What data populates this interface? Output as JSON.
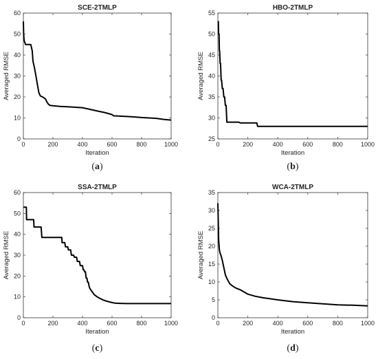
{
  "chart_data": [
    {
      "type": "line",
      "title": "SCE-2TMLP",
      "xlabel": "Iteration",
      "ylabel": "Averaged RMSE",
      "caption_letter": "a",
      "xlim": [
        0,
        1000
      ],
      "ylim": [
        0,
        60
      ],
      "xticks": [
        0,
        200,
        400,
        600,
        800,
        1000
      ],
      "yticks": [
        0,
        10,
        20,
        30,
        40,
        50,
        60
      ],
      "series": [
        {
          "x": [
            0,
            2,
            5,
            10,
            15,
            50,
            60,
            65,
            75,
            85,
            95,
            105,
            115,
            130,
            150,
            160,
            170,
            180,
            200,
            250,
            300,
            400,
            450,
            500,
            550,
            600,
            610,
            700,
            750,
            800,
            900,
            950,
            1000
          ],
          "y": [
            56,
            50,
            47,
            46,
            45,
            45,
            42,
            37,
            34,
            30,
            26,
            22,
            20.5,
            20,
            19,
            17.5,
            16.5,
            16,
            15.8,
            15.5,
            15.3,
            14.9,
            14.1,
            13.3,
            12.6,
            11.6,
            11,
            10.7,
            10.5,
            10.2,
            9.8,
            9.3,
            9
          ]
        }
      ]
    },
    {
      "type": "line",
      "title": "HBO-2TMLP",
      "xlabel": "Iteration",
      "ylabel": "Averaged RMSE",
      "caption_letter": "b",
      "xlim": [
        0,
        1000
      ],
      "ylim": [
        25,
        55
      ],
      "xticks": [
        0,
        200,
        400,
        600,
        800,
        1000
      ],
      "yticks": [
        25,
        30,
        35,
        40,
        45,
        50,
        55
      ],
      "series": [
        {
          "x": [
            0,
            3,
            5,
            8,
            10,
            12,
            15,
            18,
            22,
            25,
            30,
            35,
            40,
            45,
            50,
            55,
            60,
            65,
            100,
            140,
            150,
            260,
            265,
            1000
          ],
          "y": [
            53,
            53,
            50,
            50,
            46,
            46,
            43,
            43,
            39,
            39,
            37,
            37,
            35,
            35,
            33,
            33,
            29,
            29,
            29,
            29,
            28.8,
            28.8,
            28,
            28
          ]
        }
      ]
    },
    {
      "type": "line",
      "title": "SSA-2TMLP",
      "xlabel": "Iteration",
      "ylabel": "Averaged RMSE",
      "caption_letter": "c",
      "xlim": [
        0,
        1000
      ],
      "ylim": [
        0,
        60
      ],
      "xticks": [
        0,
        200,
        400,
        600,
        800,
        1000
      ],
      "yticks": [
        0,
        10,
        20,
        30,
        40,
        50,
        60
      ],
      "series": [
        {
          "x": [
            0,
            20,
            22,
            70,
            72,
            120,
            125,
            260,
            262,
            280,
            285,
            300,
            305,
            320,
            325,
            340,
            345,
            360,
            365,
            380,
            385,
            400,
            405,
            410,
            415,
            420,
            425,
            430,
            435,
            440,
            445,
            450,
            460,
            470,
            480,
            490,
            500,
            520,
            540,
            560,
            580,
            600,
            620,
            650,
            700,
            750,
            800,
            1000
          ],
          "y": [
            53,
            53,
            47,
            47,
            43.5,
            43.5,
            38.5,
            38.5,
            36,
            36,
            34,
            34,
            32.5,
            32.5,
            30,
            30,
            29,
            29,
            27,
            27,
            25,
            25,
            23,
            23,
            22,
            22,
            19,
            19,
            17,
            17,
            15,
            14,
            13,
            12,
            11,
            10.5,
            10,
            9.2,
            8.5,
            8,
            7.6,
            7.3,
            7,
            6.9,
            6.8,
            6.8,
            6.8,
            6.8
          ]
        }
      ]
    },
    {
      "type": "line",
      "title": "WCA-2TMLP",
      "xlabel": "Iteration",
      "ylabel": "Averaged RMSE",
      "caption_letter": "d",
      "xlim": [
        0,
        1000
      ],
      "ylim": [
        0,
        35
      ],
      "xticks": [
        0,
        200,
        400,
        600,
        800,
        1000
      ],
      "yticks": [
        0,
        5,
        10,
        15,
        20,
        25,
        30,
        35
      ],
      "series": [
        {
          "x": [
            0,
            3,
            5,
            10,
            15,
            20,
            30,
            40,
            50,
            60,
            70,
            80,
            100,
            120,
            150,
            200,
            250,
            300,
            400,
            500,
            600,
            700,
            800,
            900,
            1000
          ],
          "y": [
            32,
            26,
            22,
            19,
            18,
            17.5,
            16,
            14,
            12,
            11,
            10.2,
            9.5,
            8.8,
            8.3,
            7.8,
            6.6,
            6,
            5.6,
            5,
            4.5,
            4.2,
            3.9,
            3.6,
            3.5,
            3.3
          ]
        }
      ]
    }
  ]
}
